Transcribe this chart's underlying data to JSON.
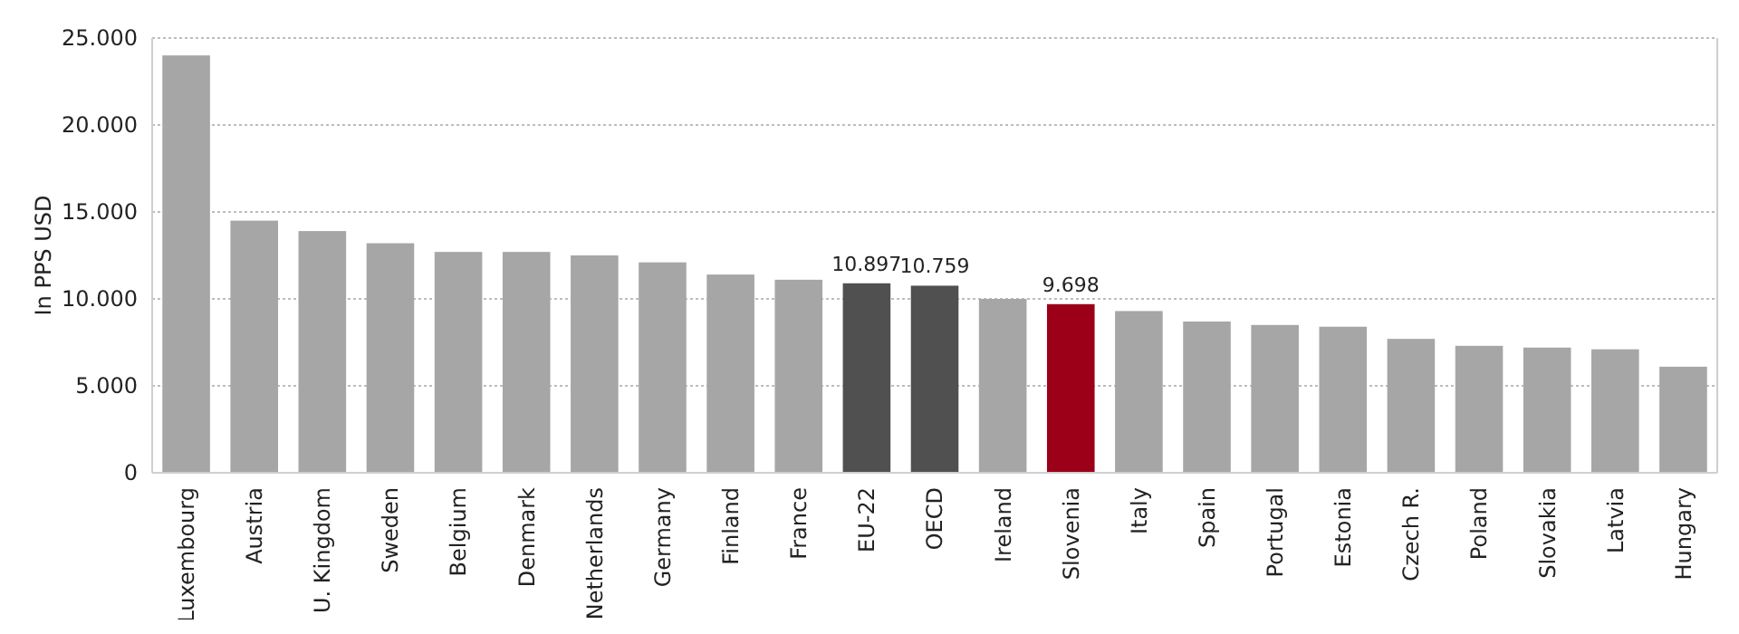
{
  "chart_data": {
    "type": "bar",
    "ylabel": "In PPS USD",
    "categories": [
      "Luxembourg",
      "Austria",
      "U. Kingdom",
      "Sweden",
      "Belgium",
      "Denmark",
      "Netherlands",
      "Germany",
      "Finland",
      "France",
      "EU-22",
      "OECD",
      "Ireland",
      "Slovenia",
      "Italy",
      "Spain",
      "Portugal",
      "Estonia",
      "Czech R.",
      "Poland",
      "Slovakia",
      "Latvia",
      "Hungary"
    ],
    "values": [
      24000,
      14500,
      13900,
      13200,
      12700,
      12700,
      12500,
      12100,
      11400,
      11100,
      10897,
      10759,
      10000,
      9698,
      9300,
      8700,
      8500,
      8400,
      7700,
      7300,
      7200,
      7100,
      6100
    ],
    "colors": [
      "#a6a6a6",
      "#a6a6a6",
      "#a6a6a6",
      "#a6a6a6",
      "#a6a6a6",
      "#a6a6a6",
      "#a6a6a6",
      "#a6a6a6",
      "#a6a6a6",
      "#a6a6a6",
      "#505050",
      "#505050",
      "#a6a6a6",
      "#9c0019",
      "#a6a6a6",
      "#a6a6a6",
      "#a6a6a6",
      "#a6a6a6",
      "#a6a6a6",
      "#a6a6a6",
      "#a6a6a6",
      "#a6a6a6",
      "#a6a6a6"
    ],
    "value_labels": [
      null,
      null,
      null,
      null,
      null,
      null,
      null,
      null,
      null,
      null,
      "10.897",
      "10.759",
      null,
      "9.698",
      null,
      null,
      null,
      null,
      null,
      null,
      null,
      null,
      null
    ],
    "ylim": [
      0,
      25000
    ],
    "yticks": [
      {
        "value": 0,
        "label": "0"
      },
      {
        "value": 5000,
        "label": "5.000"
      },
      {
        "value": 10000,
        "label": "10.000"
      },
      {
        "value": 15000,
        "label": "15.000"
      },
      {
        "value": 20000,
        "label": "20.000"
      },
      {
        "value": 25000,
        "label": "25.000"
      }
    ],
    "grid": "y"
  }
}
